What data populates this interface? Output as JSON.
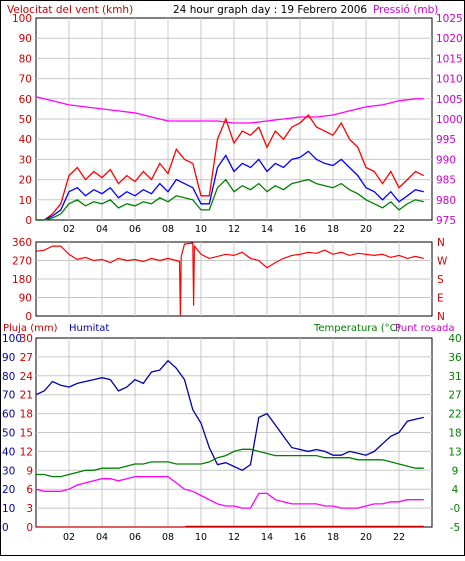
{
  "chart_data": [
    {
      "type": "line",
      "title": "24 hour graph day : 19 Febrero 2006",
      "y_left_label": "Velocitat del vent (kmh)",
      "y_right_label": "Pressió (mb)",
      "x_ticks": [
        "02",
        "04",
        "06",
        "08",
        "10",
        "12",
        "14",
        "16",
        "18",
        "20",
        "22"
      ],
      "y_left_ticks": [
        "0",
        "10",
        "20",
        "30",
        "40",
        "50",
        "60",
        "70",
        "80",
        "90",
        "100"
      ],
      "y_right_ticks": [
        "975",
        "980",
        "985",
        "990",
        "995",
        "1000",
        "1005",
        "1010",
        "1015",
        "1020",
        "1025"
      ],
      "y_left_range": [
        0,
        100
      ],
      "y_right_range": [
        975,
        1025
      ],
      "grid": true,
      "series": [
        {
          "axis": "right",
          "color": "#ff00ff",
          "x": [
            0,
            1,
            2,
            3,
            4,
            5,
            6,
            7,
            8,
            9,
            10,
            11,
            12,
            13,
            14,
            15,
            16,
            17,
            18,
            19,
            20,
            21,
            22,
            23,
            23.5
          ],
          "values": [
            1005.5,
            1004.5,
            1003.5,
            1003,
            1002.5,
            1002,
            1001.5,
            1000.5,
            999.5,
            999.5,
            999.5,
            999.5,
            999,
            999,
            999.5,
            1000,
            1000.5,
            1000.5,
            1001,
            1002,
            1003,
            1003.5,
            1004.5,
            1005,
            1005
          ]
        },
        {
          "axis": "left",
          "color": "#ff0000",
          "x": [
            0,
            0.5,
            1,
            1.5,
            2,
            2.5,
            3,
            3.5,
            4,
            4.5,
            5,
            5.5,
            6,
            6.5,
            7,
            7.5,
            8,
            8.5,
            9,
            9.5,
            10,
            10.5,
            11,
            11.5,
            12,
            12.5,
            13,
            13.5,
            14,
            14.5,
            15,
            15.5,
            16,
            16.5,
            17,
            17.5,
            18,
            18.5,
            19,
            19.5,
            20,
            20.5,
            21,
            21.5,
            22,
            22.5,
            23,
            23.5
          ],
          "values": [
            0,
            0,
            3,
            8,
            22,
            26,
            20,
            24,
            21,
            25,
            18,
            22,
            19,
            24,
            20,
            28,
            23,
            35,
            30,
            28,
            12,
            12,
            40,
            50,
            38,
            44,
            42,
            46,
            36,
            44,
            40,
            46,
            48,
            52,
            46,
            44,
            42,
            48,
            40,
            36,
            26,
            24,
            18,
            24,
            16,
            20,
            24,
            22
          ]
        },
        {
          "axis": "left",
          "color": "#0000ff",
          "x": [
            0,
            0.5,
            1,
            1.5,
            2,
            2.5,
            3,
            3.5,
            4,
            4.5,
            5,
            5.5,
            6,
            6.5,
            7,
            7.5,
            8,
            8.5,
            9,
            9.5,
            10,
            10.5,
            11,
            11.5,
            12,
            12.5,
            13,
            13.5,
            14,
            14.5,
            15,
            15.5,
            16,
            16.5,
            17,
            17.5,
            18,
            18.5,
            19,
            19.5,
            20,
            20.5,
            21,
            21.5,
            22,
            22.5,
            23,
            23.5
          ],
          "values": [
            0,
            0,
            2,
            5,
            14,
            16,
            12,
            15,
            13,
            16,
            11,
            14,
            12,
            15,
            13,
            18,
            14,
            20,
            18,
            16,
            8,
            8,
            26,
            32,
            24,
            28,
            26,
            30,
            24,
            28,
            26,
            30,
            31,
            34,
            30,
            28,
            27,
            30,
            26,
            22,
            16,
            14,
            10,
            14,
            9,
            12,
            15,
            14
          ]
        },
        {
          "axis": "left",
          "color": "#008000",
          "x": [
            0,
            0.5,
            1,
            1.5,
            2,
            2.5,
            3,
            3.5,
            4,
            4.5,
            5,
            5.5,
            6,
            6.5,
            7,
            7.5,
            8,
            8.5,
            9,
            9.5,
            10,
            10.5,
            11,
            11.5,
            12,
            12.5,
            13,
            13.5,
            14,
            14.5,
            15,
            15.5,
            16,
            16.5,
            17,
            17.5,
            18,
            18.5,
            19,
            19.5,
            20,
            20.5,
            21,
            21.5,
            22,
            22.5,
            23,
            23.5
          ],
          "values": [
            0,
            0,
            1,
            3,
            8,
            10,
            7,
            9,
            8,
            10,
            6,
            8,
            7,
            9,
            8,
            11,
            9,
            12,
            11,
            10,
            5,
            5,
            16,
            20,
            14,
            17,
            15,
            18,
            14,
            17,
            15,
            18,
            19,
            20,
            18,
            17,
            16,
            18,
            15,
            13,
            10,
            8,
            6,
            9,
            5,
            8,
            10,
            9
          ]
        }
      ]
    },
    {
      "type": "line",
      "y_left_ticks": [
        "360",
        "270",
        "180",
        "90",
        "0"
      ],
      "y_right_ticks": [
        "N",
        "W",
        "S",
        "E",
        "N"
      ],
      "y_left_range": [
        0,
        360
      ],
      "series": [
        {
          "color": "#ff0000",
          "x": [
            0,
            0.5,
            1,
            1.5,
            2,
            2.5,
            3,
            3.5,
            4,
            4.5,
            5,
            5.5,
            6,
            6.5,
            7,
            7.5,
            8,
            8.5,
            8.7,
            8.75,
            8.8,
            9,
            9.5,
            9.55,
            9.6,
            10,
            10.5,
            11,
            11.5,
            12,
            12.5,
            13,
            13.5,
            14,
            14.5,
            15,
            15.5,
            16,
            16.5,
            17,
            17.5,
            18,
            18.5,
            19,
            19.5,
            20,
            20.5,
            21,
            21.5,
            22,
            22.5,
            23,
            23.5
          ],
          "values": [
            315,
            320,
            340,
            340,
            300,
            275,
            285,
            270,
            275,
            260,
            280,
            270,
            275,
            265,
            280,
            270,
            280,
            270,
            265,
            0,
            290,
            350,
            355,
            50,
            340,
            300,
            280,
            290,
            300,
            295,
            310,
            280,
            270,
            235,
            260,
            280,
            295,
            300,
            310,
            305,
            320,
            300,
            310,
            295,
            305,
            300,
            295,
            300,
            285,
            295,
            280,
            290,
            280
          ]
        }
      ]
    },
    {
      "type": "line",
      "labels": {
        "rain": "Pluja (mm)",
        "humidity": "Humitat",
        "temp": "Temperatura (°C)",
        "dew": "Punt rosada"
      },
      "x_ticks": [
        "02",
        "04",
        "06",
        "08",
        "10",
        "12",
        "14",
        "16",
        "18",
        "20",
        "22"
      ],
      "y_left_ticks_hum": [
        "100",
        "90",
        "80",
        "70",
        "60",
        "50",
        "40",
        "30",
        "20",
        "10",
        "0"
      ],
      "y_left_ticks_rain": [
        "30",
        "27",
        "24",
        "21",
        "18",
        "15",
        "12",
        "9",
        "6",
        "3",
        "0"
      ],
      "y_right_ticks": [
        "40",
        "36",
        "31",
        "27",
        "22",
        "18",
        "13",
        "9",
        "4",
        "-0",
        "-5"
      ],
      "y_hum_range": [
        0,
        100
      ],
      "y_temp_range": [
        -5,
        40
      ],
      "grid": true,
      "series": [
        {
          "name": "Humitat",
          "axis": "hum",
          "color": "#0000aa",
          "x": [
            0,
            0.5,
            1,
            1.5,
            2,
            2.5,
            3,
            3.5,
            4,
            4.5,
            5,
            5.5,
            6,
            6.5,
            7,
            7.5,
            8,
            8.5,
            9,
            9.5,
            10,
            10.5,
            11,
            11.5,
            12,
            12.5,
            13,
            13.5,
            14,
            14.5,
            15,
            15.5,
            16,
            16.5,
            17,
            17.5,
            18,
            18.5,
            19,
            19.5,
            20,
            20.5,
            21,
            21.5,
            22,
            22.5,
            23,
            23.5
          ],
          "values": [
            70,
            72,
            77,
            75,
            74,
            76,
            77,
            78,
            79,
            78,
            72,
            74,
            78,
            76,
            82,
            83,
            88,
            84,
            78,
            62,
            55,
            42,
            33,
            34,
            32,
            30,
            33,
            58,
            60,
            54,
            48,
            42,
            41,
            40,
            41,
            40,
            38,
            38,
            40,
            39,
            38,
            40,
            44,
            48,
            50,
            56,
            57,
            58
          ]
        },
        {
          "name": "Temperatura (°C)",
          "axis": "temp",
          "color": "#008000",
          "x": [
            0,
            0.5,
            1,
            1.5,
            2,
            2.5,
            3,
            3.5,
            4,
            4.5,
            5,
            5.5,
            6,
            6.5,
            7,
            7.5,
            8,
            8.5,
            9,
            9.5,
            10,
            10.5,
            11,
            11.5,
            12,
            12.5,
            13,
            13.5,
            14,
            14.5,
            15,
            15.5,
            16,
            16.5,
            17,
            17.5,
            18,
            18.5,
            19,
            19.5,
            20,
            20.5,
            21,
            21.5,
            22,
            22.5,
            23,
            23.5
          ],
          "values": [
            7.5,
            7.5,
            7,
            7,
            7.5,
            8,
            8.5,
            8.5,
            9,
            9,
            9,
            9.5,
            10,
            10,
            10.5,
            10.5,
            10.5,
            10,
            10,
            10,
            10,
            10.5,
            11.5,
            12,
            13,
            13.5,
            13.5,
            13,
            12.5,
            12,
            12,
            12,
            12,
            12,
            12,
            11.5,
            11.5,
            11.5,
            11.5,
            11,
            11,
            11,
            11,
            10.5,
            10,
            9.5,
            9,
            9
          ]
        },
        {
          "name": "Punt rosada",
          "axis": "temp",
          "color": "#ff00ff",
          "x": [
            0,
            0.5,
            1,
            1.5,
            2,
            2.5,
            3,
            3.5,
            4,
            4.5,
            5,
            5.5,
            6,
            6.5,
            7,
            7.5,
            8,
            8.5,
            9,
            9.5,
            10,
            10.5,
            11,
            11.5,
            12,
            12.5,
            13,
            13.5,
            14,
            14.5,
            15,
            15.5,
            16,
            16.5,
            17,
            17.5,
            18,
            18.5,
            19,
            19.5,
            20,
            20.5,
            21,
            21.5,
            22,
            22.5,
            23,
            23.5
          ],
          "values": [
            4,
            3.5,
            3.5,
            3.5,
            4,
            5,
            5.5,
            6,
            6.5,
            6.5,
            6,
            6.5,
            7,
            7,
            7,
            7,
            7,
            5.5,
            4,
            3.5,
            2.5,
            1.5,
            0.5,
            0,
            0,
            -0.5,
            -0.5,
            3,
            3,
            1.5,
            1,
            0.5,
            0.5,
            0.5,
            0.5,
            0,
            0,
            -0.5,
            -0.5,
            -0.5,
            0,
            0.5,
            0.5,
            1,
            1,
            1.5,
            1.5,
            1.5
          ]
        },
        {
          "name": "Pluja (mm)",
          "axis": "rain",
          "color": "#cc0000",
          "x": [
            0,
            9,
            9.1,
            23.5
          ],
          "values": [
            0,
            0,
            0.1,
            0.1
          ]
        }
      ]
    }
  ]
}
